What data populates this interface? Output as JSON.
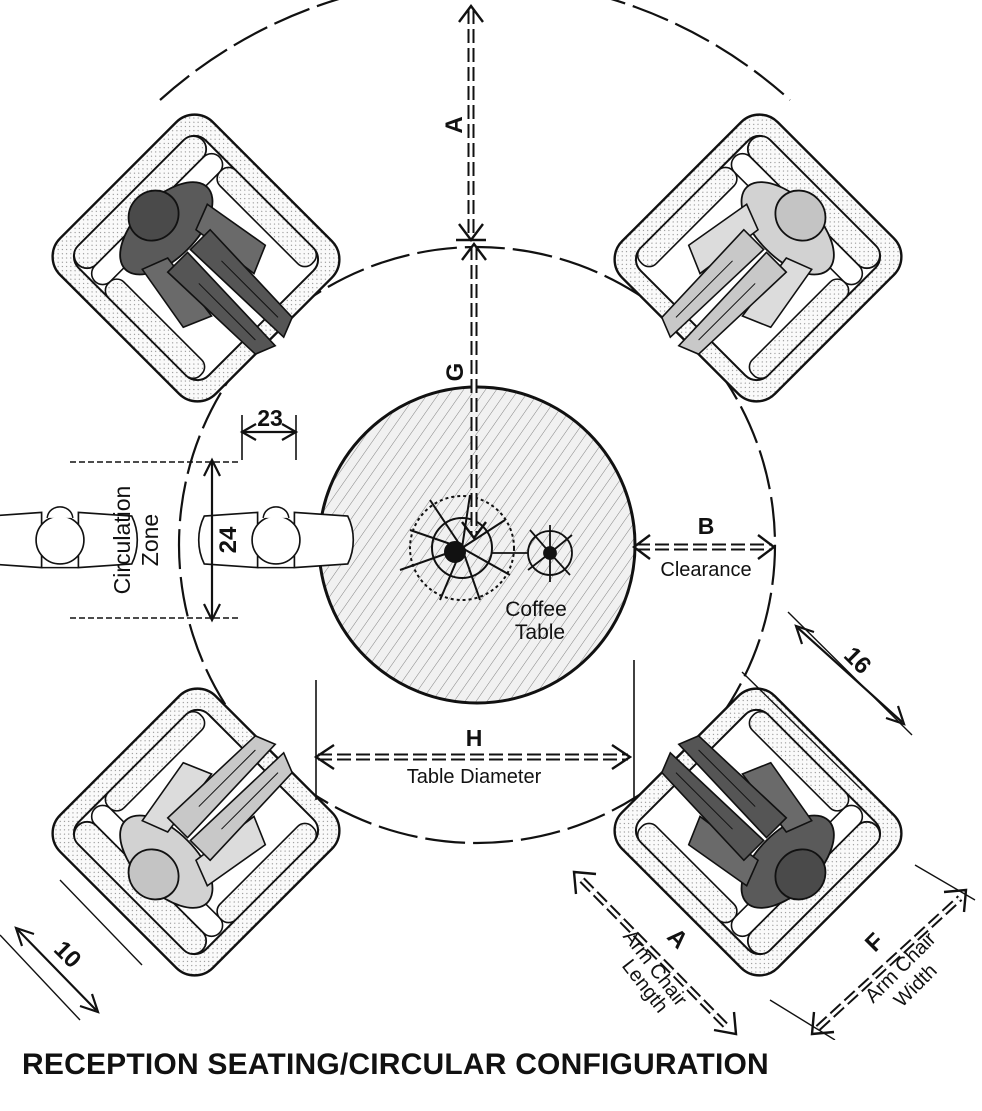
{
  "title": "RECEPTION SEATING/CIRCULAR CONFIGURATION",
  "labels": {
    "dim_a_top": "A",
    "dim_g": "G",
    "dim_b": "B",
    "clearance": "Clearance",
    "dim_h": "H",
    "table_diameter": "Table Diameter",
    "coffee": "Coffee",
    "table": "Table",
    "dim_23": "23",
    "dim_24": "24",
    "circulation": "Circulation",
    "zone": "Zone",
    "dim_16": "16",
    "dim_10": "10",
    "dim_a_bottom": "A",
    "arm_chair": "Arm Chair",
    "length": "Length",
    "dim_f": "F",
    "arm_chair_w": "Arm Chair",
    "width": "Width"
  },
  "colors": {
    "ink": "#111111",
    "dark_figure": "#5a5a5a",
    "light_figure": "#cfcfcf",
    "chair_fill": "#f4f4f4",
    "table_fill": "#ececec"
  }
}
